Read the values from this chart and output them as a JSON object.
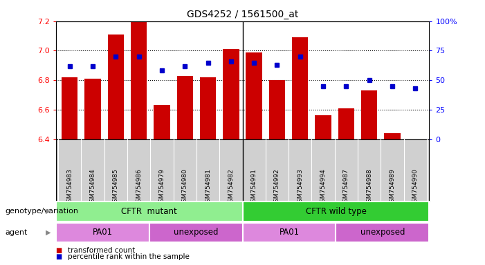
{
  "title": "GDS4252 / 1561500_at",
  "samples": [
    "GSM754983",
    "GSM754984",
    "GSM754985",
    "GSM754986",
    "GSM754979",
    "GSM754980",
    "GSM754981",
    "GSM754982",
    "GSM754991",
    "GSM754992",
    "GSM754993",
    "GSM754994",
    "GSM754987",
    "GSM754988",
    "GSM754989",
    "GSM754990"
  ],
  "bar_values": [
    6.82,
    6.81,
    7.11,
    7.2,
    6.63,
    6.83,
    6.82,
    7.01,
    6.99,
    6.8,
    7.09,
    6.56,
    6.61,
    6.73,
    6.44,
    6.4
  ],
  "percentile_values": [
    62,
    62,
    70,
    70,
    58,
    62,
    65,
    66,
    65,
    63,
    70,
    45,
    45,
    50,
    45,
    43
  ],
  "ylim_left": [
    6.4,
    7.2
  ],
  "ylim_right": [
    0,
    100
  ],
  "yticks_left": [
    6.4,
    6.6,
    6.8,
    7.0,
    7.2
  ],
  "yticks_right": [
    0,
    25,
    50,
    75,
    100
  ],
  "bar_color": "#cc0000",
  "dot_color": "#0000cc",
  "background_color": "#ffffff",
  "tick_bg_color": "#d0d0d0",
  "groups": [
    {
      "label": "CFTR  mutant",
      "start": 0,
      "end": 8,
      "color": "#90ee90"
    },
    {
      "label": "CFTR wild type",
      "start": 8,
      "end": 16,
      "color": "#33cc33"
    }
  ],
  "agents": [
    {
      "label": "PA01",
      "start": 0,
      "end": 4,
      "color": "#dd88dd"
    },
    {
      "label": "unexposed",
      "start": 4,
      "end": 8,
      "color": "#cc66cc"
    },
    {
      "label": "PA01",
      "start": 8,
      "end": 12,
      "color": "#dd88dd"
    },
    {
      "label": "unexposed",
      "start": 12,
      "end": 16,
      "color": "#cc66cc"
    }
  ],
  "legend_items": [
    {
      "label": "transformed count",
      "color": "#cc0000"
    },
    {
      "label": "percentile rank within the sample",
      "color": "#0000cc"
    }
  ],
  "genotype_label": "genotype/variation",
  "agent_label": "agent",
  "separator_at": 8,
  "grid_lines": [
    6.6,
    6.8,
    7.0
  ],
  "hgrid_color": "#000000"
}
